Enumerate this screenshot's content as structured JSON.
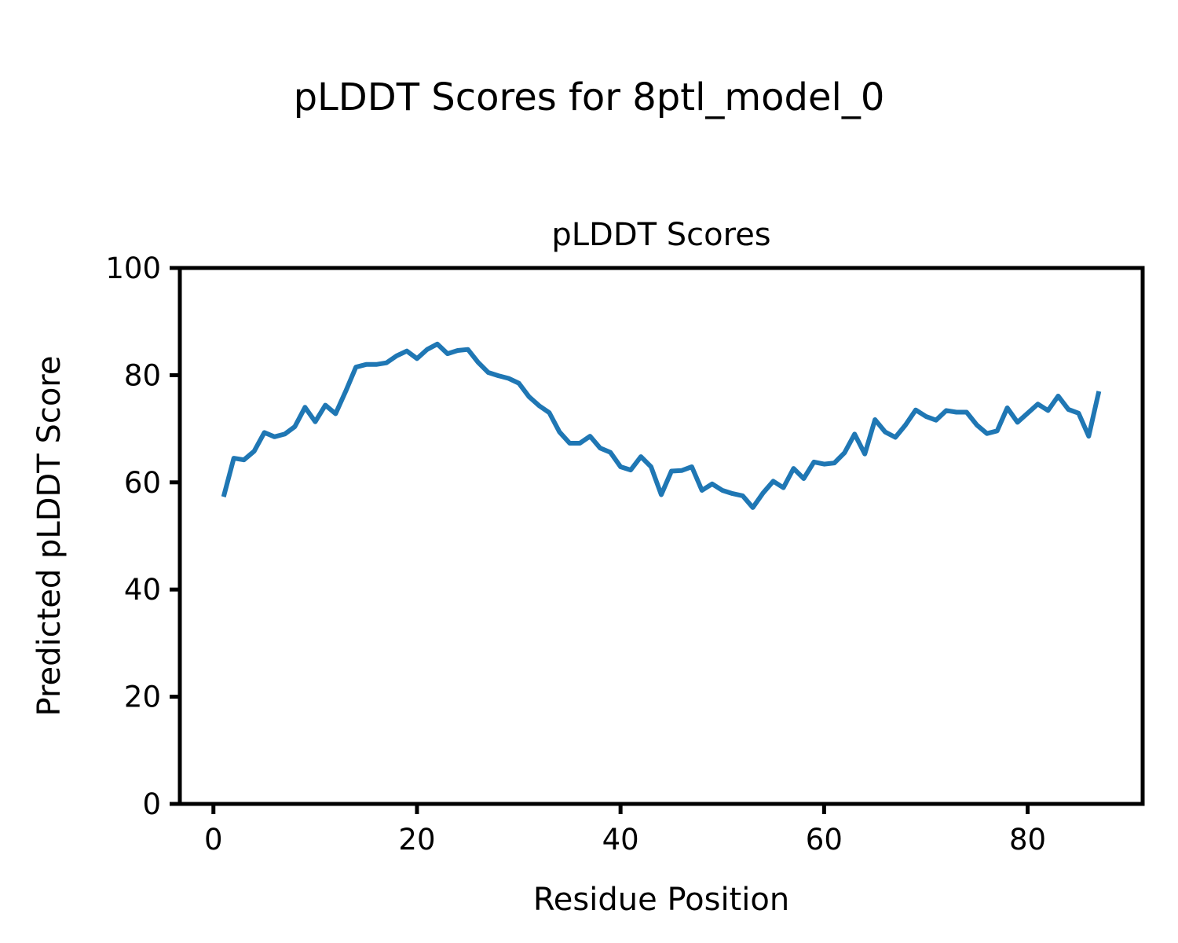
{
  "figure": {
    "suptitle": "pLDDT Scores for 8ptl_model_0",
    "background_color": "#ffffff",
    "text_color": "#000000"
  },
  "chart_data": {
    "type": "line",
    "title": "pLDDT Scores",
    "xlabel": "Residue Position",
    "ylabel": "Predicted pLDDT Score",
    "xlim": [
      -3.3,
      91.3
    ],
    "ylim": [
      0,
      100
    ],
    "xticks": [
      0,
      20,
      40,
      60,
      80
    ],
    "yticks": [
      0,
      20,
      40,
      60,
      80,
      100
    ],
    "grid": false,
    "legend_position": "none",
    "line_color": "#1f77b4",
    "series": [
      {
        "name": "pLDDT",
        "x": [
          1,
          2,
          3,
          4,
          5,
          6,
          7,
          8,
          9,
          10,
          11,
          12,
          13,
          14,
          15,
          16,
          17,
          18,
          19,
          20,
          21,
          22,
          23,
          24,
          25,
          26,
          27,
          28,
          29,
          30,
          31,
          32,
          33,
          34,
          35,
          36,
          37,
          38,
          39,
          40,
          41,
          42,
          43,
          44,
          45,
          46,
          47,
          48,
          49,
          50,
          51,
          52,
          53,
          54,
          55,
          56,
          57,
          58,
          59,
          60,
          61,
          62,
          63,
          64,
          65,
          66,
          67,
          68,
          69,
          70,
          71,
          72,
          73,
          74,
          75,
          76,
          77,
          78,
          79,
          80,
          81,
          82,
          83,
          84,
          85,
          86,
          87
        ],
        "values": [
          57.3,
          64.5,
          64.2,
          65.8,
          69.3,
          68.5,
          69.0,
          70.4,
          74.0,
          71.3,
          74.4,
          72.8,
          77.0,
          81.5,
          82.0,
          82.0,
          82.3,
          83.6,
          84.5,
          83.1,
          84.8,
          85.8,
          84.0,
          84.6,
          84.8,
          82.4,
          80.5,
          79.9,
          79.4,
          78.5,
          76.0,
          74.3,
          73.0,
          69.4,
          67.3,
          67.3,
          68.6,
          66.4,
          65.6,
          62.9,
          62.3,
          64.8,
          62.9,
          57.7,
          62.1,
          62.2,
          62.9,
          58.5,
          59.7,
          58.5,
          57.9,
          57.5,
          55.3,
          58.0,
          60.2,
          59.0,
          62.6,
          60.7,
          63.8,
          63.4,
          63.6,
          65.5,
          69.0,
          65.3,
          71.7,
          69.4,
          68.4,
          70.7,
          73.5,
          72.3,
          71.6,
          73.4,
          73.1,
          73.1,
          70.7,
          69.1,
          69.6,
          73.9,
          71.2,
          72.9,
          74.6,
          73.4,
          76.1,
          73.6,
          72.9,
          68.6,
          77.0
        ]
      }
    ]
  }
}
